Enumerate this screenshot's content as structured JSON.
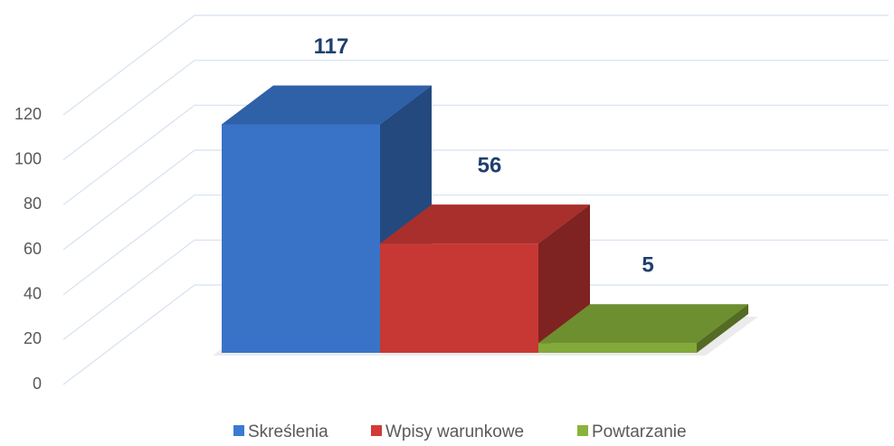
{
  "chart_data": {
    "type": "bar",
    "series": [
      {
        "name": "Skreślenia",
        "color": "#3b7ad2",
        "values": [
          117
        ]
      },
      {
        "name": "Wpisy warunkowe",
        "color": "#d23b37",
        "values": [
          56
        ]
      },
      {
        "name": "Powtarzanie",
        "color": "#8ab33d",
        "values": [
          5
        ]
      }
    ],
    "ylim": [
      0,
      120
    ],
    "yticks": [
      0,
      20,
      40,
      60,
      80,
      100,
      120
    ],
    "grid": true,
    "legend": "bottom"
  }
}
